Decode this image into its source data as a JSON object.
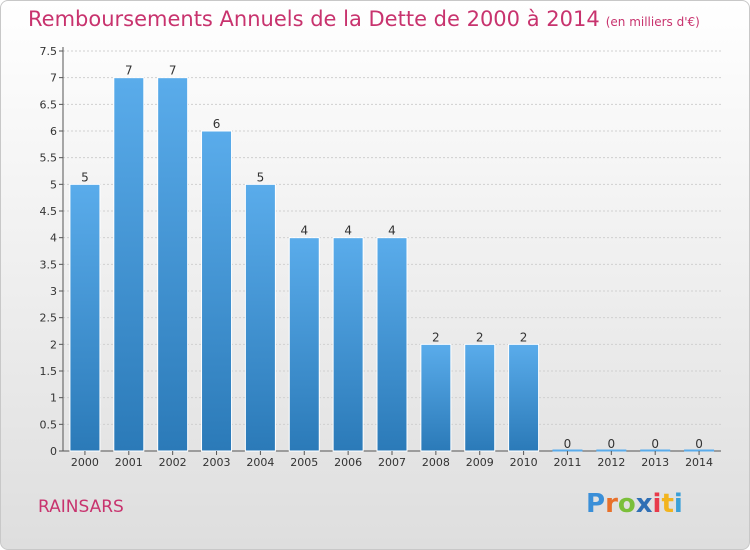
{
  "title": "Remboursements Annuels de la Dette de 2000 à 2014",
  "subtitle": "(en milliers d'€)",
  "commune": "RAINSARS",
  "logo": {
    "letters": [
      "P",
      "r",
      "o",
      "x",
      "i",
      "t",
      "i"
    ],
    "colors": [
      "#3a8fd8",
      "#e8702a",
      "#7bbf3a",
      "#2f6fb5",
      "#e83a4a",
      "#f2b41e",
      "#3aa0d8"
    ]
  },
  "colors": {
    "bar_top": "#5aaceb",
    "bar_bottom": "#2b7ab8",
    "title": "#c8336e",
    "axis": "#555555",
    "grid": "#d0d0d0"
  },
  "chart_data": {
    "type": "bar",
    "title": "Remboursements Annuels de la Dette de 2000 à 2014",
    "subtitle": "(en milliers d'€)",
    "categories": [
      "2000",
      "2001",
      "2002",
      "2003",
      "2004",
      "2005",
      "2006",
      "2007",
      "2008",
      "2009",
      "2010",
      "2011",
      "2012",
      "2013",
      "2014"
    ],
    "values": [
      5,
      7,
      7,
      6,
      5,
      4,
      4,
      4,
      2,
      2,
      2,
      0,
      0,
      0,
      0
    ],
    "ylim": [
      0,
      7.5
    ],
    "yticks": [
      "0",
      "0.5",
      "1",
      "1.5",
      "2",
      "2.5",
      "3",
      "3.5",
      "4",
      "4.5",
      "5",
      "5.5",
      "6",
      "6.5",
      "7",
      "7.5"
    ],
    "grid": true
  }
}
